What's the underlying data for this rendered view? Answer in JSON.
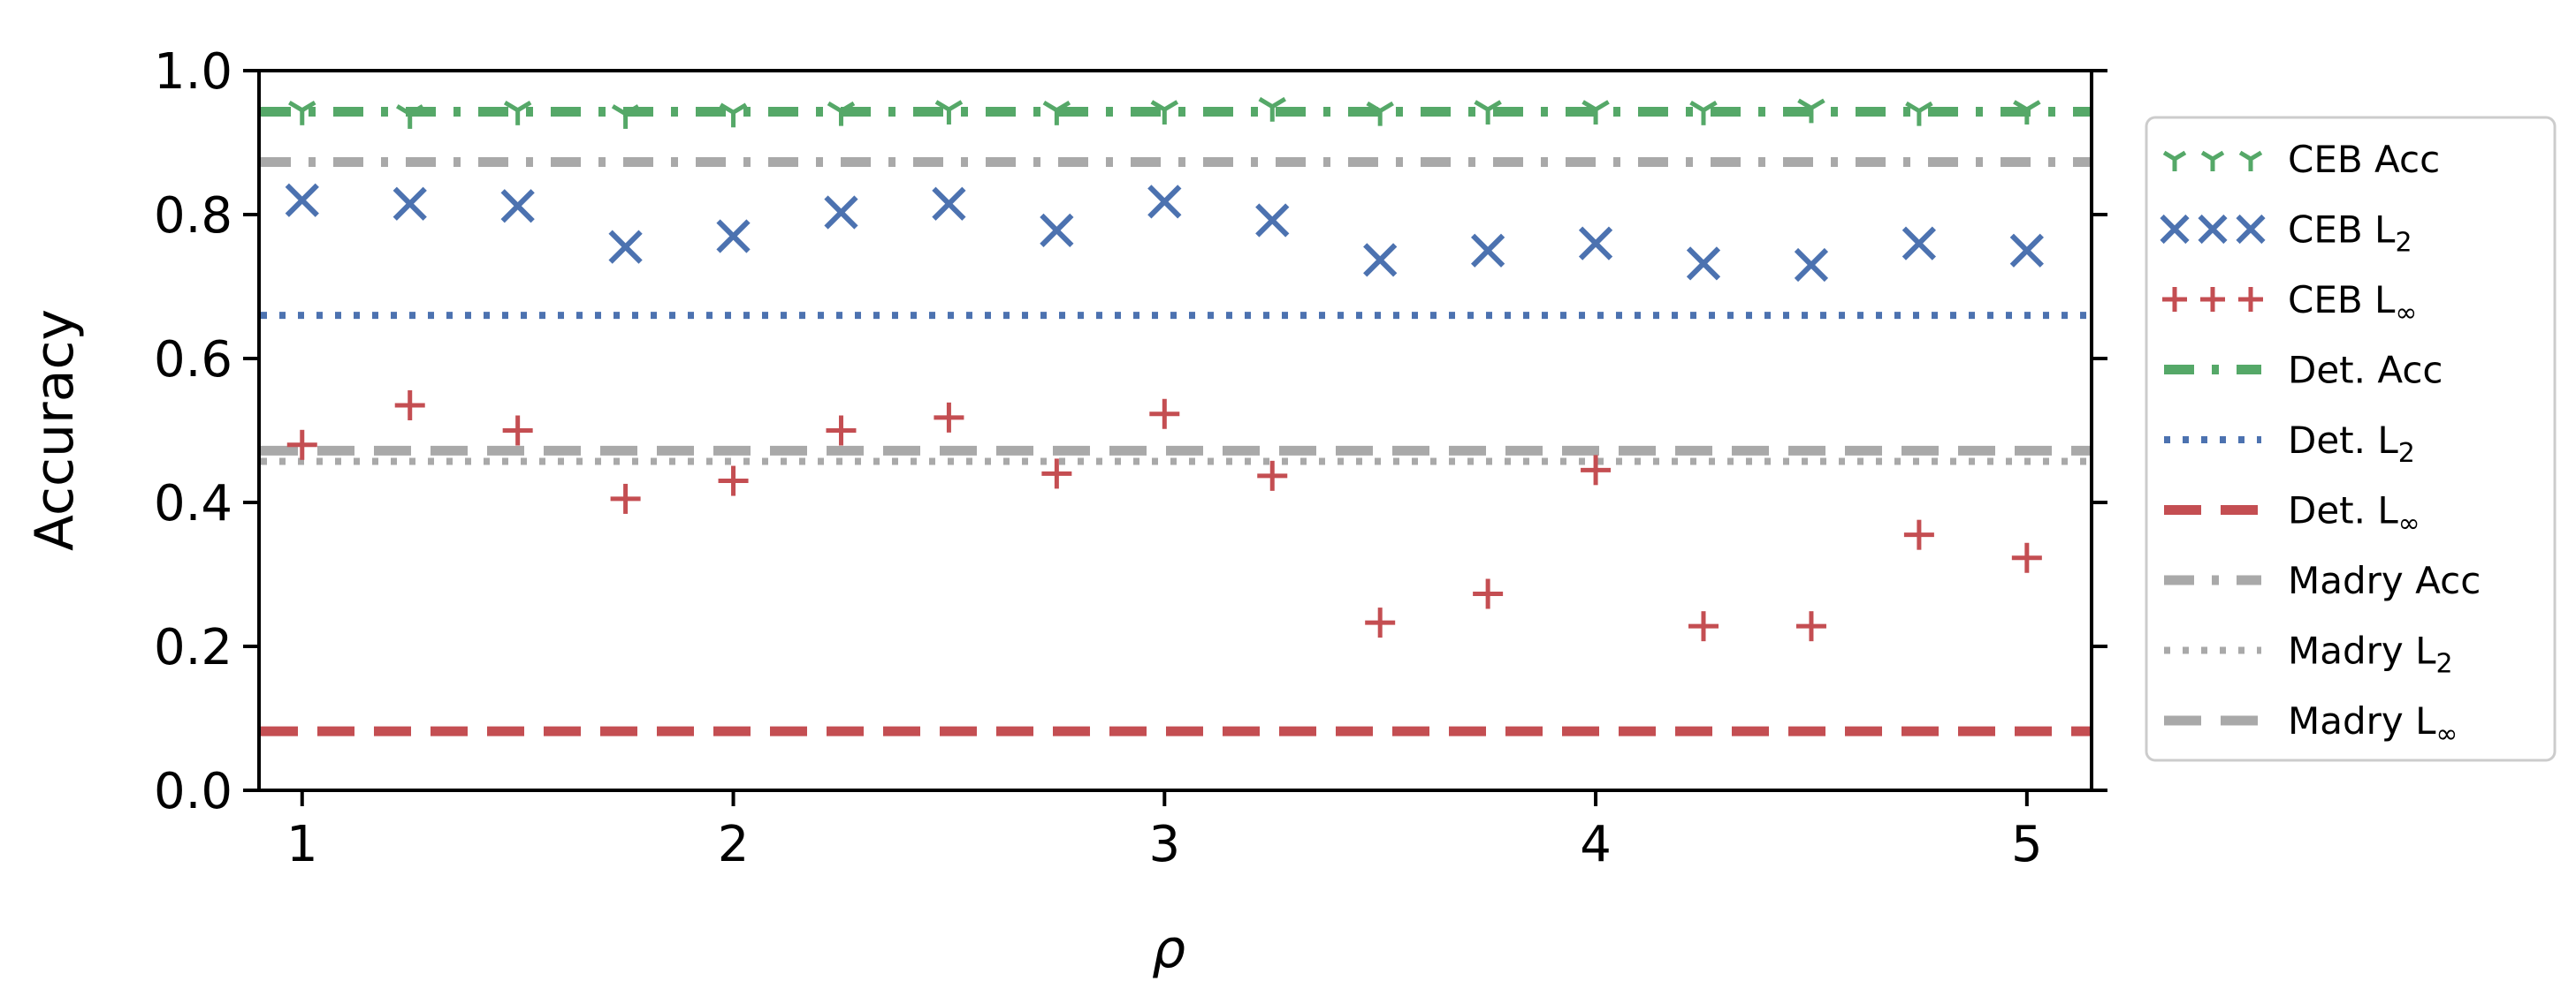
{
  "chart_data": {
    "type": "scatter",
    "xlabel": "ρ",
    "ylabel": "Accuracy",
    "xlim": [
      0.9,
      5.15
    ],
    "ylim": [
      0.0,
      1.0
    ],
    "x_ticks": [
      "1",
      "2",
      "3",
      "4",
      "5"
    ],
    "y_ticks": [
      "0.0",
      "0.2",
      "0.4",
      "0.6",
      "0.8",
      "1.0"
    ],
    "grid": false,
    "legend_position": "right, outside plot",
    "x": [
      1.0,
      1.25,
      1.5,
      1.75,
      2.0,
      2.25,
      2.5,
      2.75,
      3.0,
      3.25,
      3.5,
      3.75,
      4.0,
      4.25,
      4.5,
      4.75,
      5.0
    ],
    "series": [
      {
        "name": "CEB Acc",
        "kind": "points",
        "marker": "tri-down",
        "color": "#55a868",
        "values": [
          0.945,
          0.94,
          0.945,
          0.94,
          0.942,
          0.944,
          0.946,
          0.945,
          0.946,
          0.95,
          0.944,
          0.946,
          0.946,
          0.945,
          0.948,
          0.944,
          0.946
        ]
      },
      {
        "name": "CEB L2",
        "legend_main": "CEB L",
        "legend_sub": "2",
        "kind": "points",
        "marker": "x",
        "color": "#4c72b0",
        "values": [
          0.82,
          0.815,
          0.812,
          0.755,
          0.77,
          0.803,
          0.815,
          0.778,
          0.818,
          0.792,
          0.737,
          0.75,
          0.76,
          0.732,
          0.73,
          0.76,
          0.75
        ]
      },
      {
        "name": "CEB L∞",
        "legend_main": "CEB L",
        "legend_sub": "∞",
        "kind": "points",
        "marker": "plus",
        "color": "#c44e52",
        "values": [
          0.48,
          0.535,
          0.5,
          0.405,
          0.43,
          0.5,
          0.518,
          0.44,
          0.523,
          0.437,
          0.233,
          0.273,
          0.445,
          0.228,
          0.228,
          0.355,
          0.323
        ]
      },
      {
        "name": "Det. Acc",
        "kind": "hline",
        "style": "dashdot",
        "color": "#55a868",
        "value": 0.943
      },
      {
        "name": "Det. L2",
        "legend_main": "Det. L",
        "legend_sub": "2",
        "kind": "hline",
        "style": "dotted",
        "color": "#4c72b0",
        "value": 0.66
      },
      {
        "name": "Det. L∞",
        "legend_main": "Det. L",
        "legend_sub": "∞",
        "kind": "hline",
        "style": "dashed",
        "color": "#c44e52",
        "value": 0.082
      },
      {
        "name": "Madry Acc",
        "kind": "hline",
        "style": "dashdot",
        "color": "#a9a9a9",
        "value": 0.873
      },
      {
        "name": "Madry L2",
        "legend_main": "Madry L",
        "legend_sub": "2",
        "kind": "hline",
        "style": "dotted",
        "color": "#a9a9a9",
        "value": 0.457
      },
      {
        "name": "Madry L∞",
        "legend_main": "Madry L",
        "legend_sub": "∞",
        "kind": "hline",
        "style": "dashed",
        "color": "#a9a9a9",
        "value": 0.472
      }
    ]
  }
}
